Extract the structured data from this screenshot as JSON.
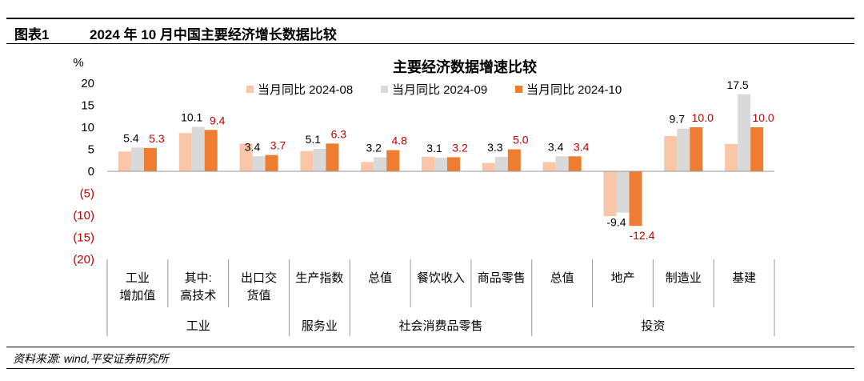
{
  "header": {
    "figure_number": "图表1",
    "figure_title": "2024 年 10 月中国主要经济增长数据比较"
  },
  "footer": {
    "source": "资料来源: wind,平安证券研究所"
  },
  "colors": {
    "series_2024_08": "#f9c7a8",
    "series_2024_09": "#d9d9d9",
    "series_2024_10": "#ee7d31",
    "label_latest": "#c00000"
  },
  "chart_data": {
    "type": "bar",
    "title": "主要经济数据增速比较",
    "ylabel": "%",
    "ylim": [
      -20,
      20
    ],
    "yticks": [
      20,
      15,
      10,
      5,
      0,
      -5,
      -10,
      -15,
      -20
    ],
    "ytick_labels": [
      "20",
      "15",
      "10",
      "5",
      "0",
      "(5)",
      "(10)",
      "(15)",
      "(20)"
    ],
    "legend_position": "top",
    "categories": [
      {
        "lines": [
          "工业",
          "增加值"
        ]
      },
      {
        "lines": [
          "其中:",
          "高技术"
        ]
      },
      {
        "lines": [
          "出口交",
          "货值"
        ]
      },
      {
        "lines": [
          "生产指数"
        ]
      },
      {
        "lines": [
          "总值"
        ]
      },
      {
        "lines": [
          "餐饮收入"
        ]
      },
      {
        "lines": [
          "商品零售"
        ]
      },
      {
        "lines": [
          "总值"
        ]
      },
      {
        "lines": [
          "地产"
        ]
      },
      {
        "lines": [
          "制造业"
        ]
      },
      {
        "lines": [
          "基建"
        ]
      }
    ],
    "groups": [
      {
        "label": "工业",
        "start": 0,
        "end": 2
      },
      {
        "label": "服务业",
        "start": 3,
        "end": 3
      },
      {
        "label": "社会消费品零售",
        "start": 4,
        "end": 6
      },
      {
        "label": "投资",
        "start": 7,
        "end": 10
      }
    ],
    "series": [
      {
        "name": "当月同比 2024-08",
        "color": "#f9c7a8",
        "values": [
          4.5,
          8.7,
          6.3,
          4.6,
          2.1,
          3.3,
          1.9,
          2.1,
          -10.2,
          8.0,
          6.2
        ],
        "labels": [
          null,
          null,
          null,
          null,
          null,
          null,
          null,
          null,
          null,
          null,
          null
        ]
      },
      {
        "name": "当月同比 2024-09",
        "color": "#d9d9d9",
        "values": [
          5.4,
          10.1,
          3.4,
          5.1,
          3.2,
          3.1,
          3.3,
          3.4,
          -9.4,
          9.7,
          17.5
        ],
        "labels": [
          "5.4",
          "10.1",
          "3.4",
          "5.1",
          "3.2",
          "3.1",
          "3.3",
          "3.4",
          "-9.4",
          "9.7",
          "17.5"
        ]
      },
      {
        "name": "当月同比 2024-10",
        "color": "#ee7d31",
        "values": [
          5.3,
          9.4,
          3.7,
          6.3,
          4.8,
          3.2,
          5.0,
          3.4,
          -12.4,
          10.0,
          10.0
        ],
        "labels": [
          "5.3",
          "9.4",
          "3.7",
          "6.3",
          "4.8",
          "3.2",
          "5.0",
          "3.4",
          "-12.4",
          "10.0",
          "10.0"
        ]
      }
    ]
  }
}
